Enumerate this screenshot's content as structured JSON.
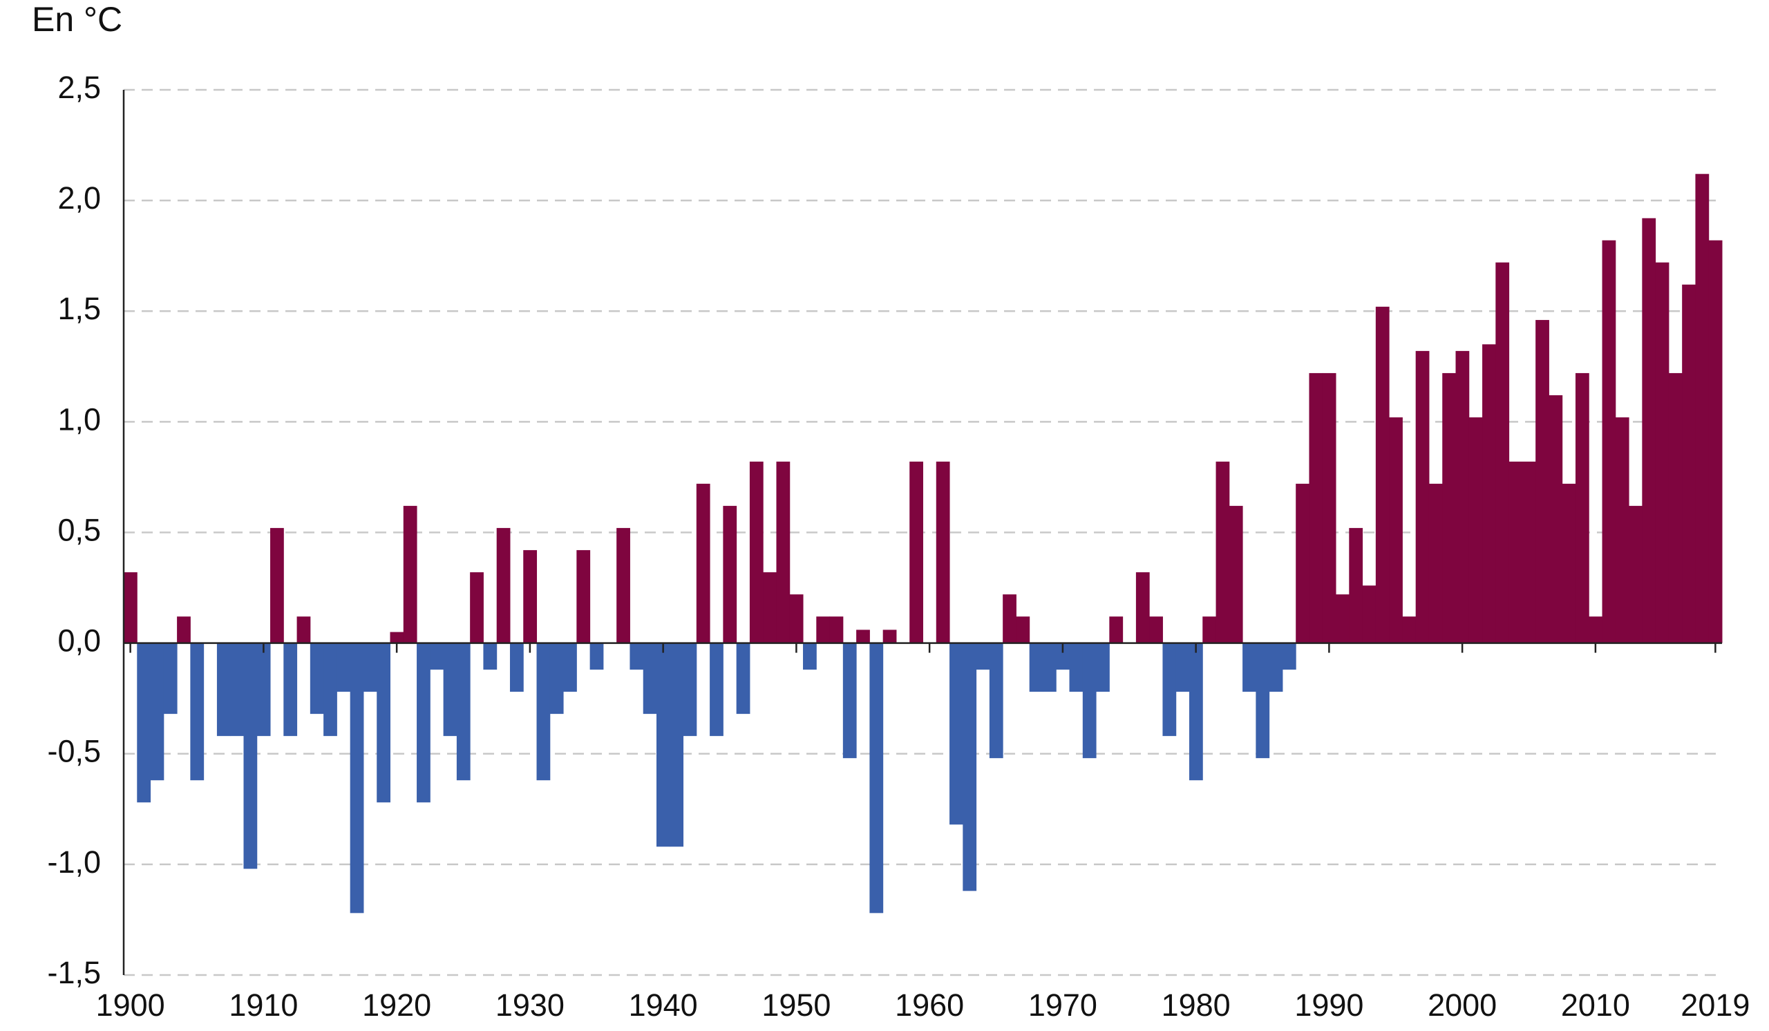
{
  "chart_data": {
    "type": "bar",
    "title": "En °C",
    "x": [
      1900,
      1901,
      1902,
      1903,
      1904,
      1905,
      1906,
      1907,
      1908,
      1909,
      1910,
      1911,
      1912,
      1913,
      1914,
      1915,
      1916,
      1917,
      1918,
      1919,
      1920,
      1921,
      1922,
      1923,
      1924,
      1925,
      1926,
      1927,
      1928,
      1929,
      1930,
      1931,
      1932,
      1933,
      1934,
      1935,
      1936,
      1937,
      1938,
      1939,
      1940,
      1941,
      1942,
      1943,
      1944,
      1945,
      1946,
      1947,
      1948,
      1949,
      1950,
      1951,
      1952,
      1953,
      1954,
      1955,
      1956,
      1957,
      1958,
      1959,
      1960,
      1961,
      1962,
      1963,
      1964,
      1965,
      1966,
      1967,
      1968,
      1969,
      1970,
      1971,
      1972,
      1973,
      1974,
      1975,
      1976,
      1977,
      1978,
      1979,
      1980,
      1981,
      1982,
      1983,
      1984,
      1985,
      1986,
      1987,
      1988,
      1989,
      1990,
      1991,
      1992,
      1993,
      1994,
      1995,
      1996,
      1997,
      1998,
      1999,
      2000,
      2001,
      2002,
      2003,
      2004,
      2005,
      2006,
      2007,
      2008,
      2009,
      2010,
      2011,
      2012,
      2013,
      2014,
      2015,
      2016,
      2017,
      2018,
      2019
    ],
    "values": [
      0.32,
      -0.72,
      -0.62,
      -0.32,
      0.12,
      -0.62,
      0,
      -0.42,
      -0.42,
      -1.02,
      -0.42,
      0.52,
      -0.42,
      0.12,
      -0.32,
      -0.42,
      -0.22,
      -1.22,
      -0.22,
      -0.72,
      0.05,
      0.62,
      -0.72,
      -0.12,
      -0.42,
      -0.62,
      0.32,
      -0.12,
      0.52,
      -0.22,
      0.42,
      -0.62,
      -0.32,
      -0.22,
      0.42,
      -0.12,
      0,
      0.52,
      -0.12,
      -0.32,
      -0.92,
      -0.92,
      -0.42,
      0.72,
      -0.42,
      0.62,
      -0.32,
      0.82,
      0.32,
      0.82,
      0.22,
      -0.12,
      0.12,
      0.12,
      -0.52,
      0.06,
      -1.22,
      0.06,
      0,
      0.82,
      0,
      0.82,
      -0.82,
      -1.12,
      -0.12,
      -0.52,
      0.22,
      0.12,
      -0.22,
      -0.22,
      -0.12,
      -0.22,
      -0.52,
      -0.22,
      0.12,
      0,
      0.32,
      0.12,
      -0.42,
      -0.22,
      -0.62,
      0.12,
      0.82,
      0.62,
      -0.22,
      -0.52,
      -0.22,
      -0.12,
      0.72,
      1.22,
      1.22,
      0.22,
      0.52,
      0.26,
      1.52,
      1.02,
      0.12,
      1.32,
      0.72,
      1.22,
      1.32,
      1.02,
      1.35,
      1.72,
      0.82,
      0.82,
      1.46,
      1.12,
      0.72,
      1.22,
      0.12,
      1.82,
      1.02,
      0.62,
      1.92,
      1.72,
      1.22,
      1.62,
      2.12,
      1.82
    ],
    "colors": {
      "positive": "#7f053f",
      "negative": "#3a60ab"
    },
    "xlim": [
      1899.5,
      2019.5
    ],
    "xticks": [
      1900,
      1910,
      1920,
      1930,
      1940,
      1950,
      1960,
      1970,
      1980,
      1990,
      2000,
      2010,
      2019
    ],
    "ylim": [
      -1.5,
      2.5
    ],
    "yticks": [
      {
        "value": -1.5,
        "label": "-1,5"
      },
      {
        "value": -1,
        "label": "-1,0"
      },
      {
        "value": -0.5,
        "label": "-0,5"
      },
      {
        "value": 0,
        "label": "0,0"
      },
      {
        "value": 0.5,
        "label": "0,5"
      },
      {
        "value": 1,
        "label": "1,0"
      },
      {
        "value": 1.5,
        "label": "1,5"
      },
      {
        "value": 2,
        "label": "2,0"
      },
      {
        "value": 2.5,
        "label": "2,5"
      }
    ],
    "grid": true
  }
}
